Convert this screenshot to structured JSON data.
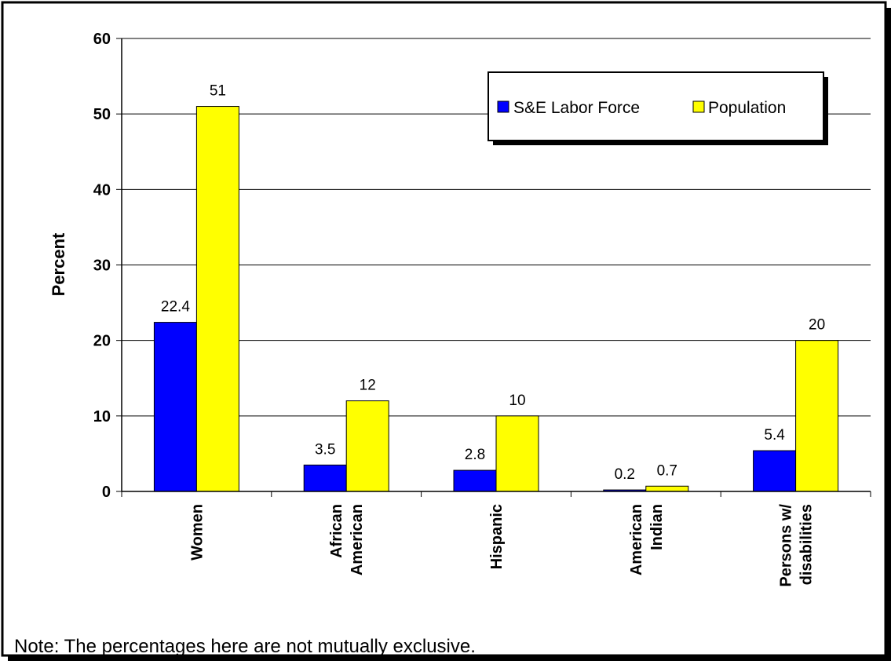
{
  "chart_data": {
    "type": "bar",
    "categories": [
      [
        "Women"
      ],
      [
        "African",
        "American"
      ],
      [
        "Hispanic"
      ],
      [
        "American",
        "Indian"
      ],
      [
        "Persons w/",
        "disabilities"
      ]
    ],
    "series": [
      {
        "name": "S&E Labor Force",
        "color": "#0000ff",
        "values": [
          22.4,
          3.5,
          2.8,
          0.2,
          5.4
        ],
        "labels": [
          "22.4",
          "3.5",
          "2.8",
          "0.2",
          "5.4"
        ]
      },
      {
        "name": "Population",
        "color": "#ffff00",
        "values": [
          51,
          12,
          10,
          0.7,
          20
        ],
        "labels": [
          "51",
          "12",
          "10",
          "0.7",
          "20"
        ]
      }
    ],
    "ylabel": "Percent",
    "ylim": [
      0,
      60
    ],
    "yticks": [
      "0",
      "10",
      "20",
      "30",
      "40",
      "50",
      "60"
    ],
    "grid": true,
    "legend_position": "top-right"
  },
  "note": "Note:  The percentages here are not mutually exclusive."
}
